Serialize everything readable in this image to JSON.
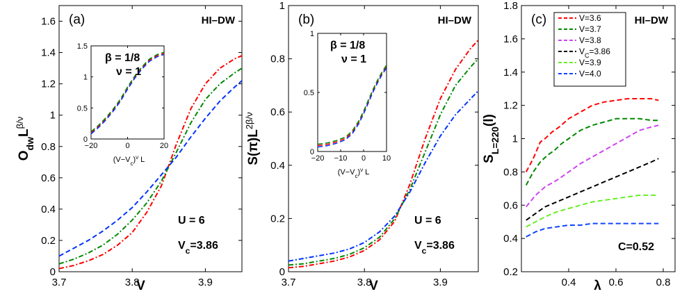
{
  "chart_data": [
    {
      "id": "a",
      "type": "line",
      "panel_label": "(a)",
      "tag": "HI–DW",
      "xlabel": "V",
      "ylabel_main": "O",
      "ylabel_sub": "dw",
      "ylabel_tail": "L",
      "ylabel_sup": "β/ν",
      "xlim": [
        3.7,
        3.95
      ],
      "ylim": [
        0,
        1.7
      ],
      "xticks": [
        3.7,
        3.8,
        3.9
      ],
      "xtick_labels": [
        "3.7",
        "3.8",
        "3.9"
      ],
      "yticks": [
        0,
        0.2,
        0.4,
        0.6,
        0.8,
        1,
        1.2,
        1.4,
        1.6
      ],
      "ytick_labels": [
        "0",
        "0.2",
        "0.4",
        "0.6",
        "0.8",
        "1",
        "1.2",
        "1.4",
        "1.6"
      ],
      "annotations": [
        "U = 6",
        "V",
        "c",
        "=3.86"
      ],
      "series": [
        {
          "name": "red",
          "color": "#ff0000",
          "dash": "dashdot",
          "x": [
            3.7,
            3.72,
            3.74,
            3.76,
            3.78,
            3.8,
            3.82,
            3.84,
            3.86,
            3.88,
            3.9,
            3.92,
            3.94,
            3.95
          ],
          "y": [
            0.02,
            0.04,
            0.07,
            0.11,
            0.17,
            0.25,
            0.38,
            0.55,
            0.81,
            1.04,
            1.2,
            1.3,
            1.36,
            1.38
          ]
        },
        {
          "name": "green",
          "color": "#008800",
          "dash": "dashdot",
          "x": [
            3.7,
            3.72,
            3.74,
            3.76,
            3.78,
            3.8,
            3.82,
            3.84,
            3.86,
            3.88,
            3.9,
            3.92,
            3.94,
            3.95
          ],
          "y": [
            0.05,
            0.08,
            0.12,
            0.17,
            0.24,
            0.33,
            0.44,
            0.58,
            0.76,
            0.95,
            1.1,
            1.2,
            1.27,
            1.3
          ]
        },
        {
          "name": "blue",
          "color": "#0033ff",
          "dash": "dash",
          "x": [
            3.7,
            3.72,
            3.74,
            3.76,
            3.78,
            3.8,
            3.82,
            3.84,
            3.86,
            3.88,
            3.9,
            3.92,
            3.94,
            3.95
          ],
          "y": [
            0.1,
            0.15,
            0.2,
            0.26,
            0.33,
            0.41,
            0.51,
            0.62,
            0.73,
            0.86,
            0.98,
            1.09,
            1.18,
            1.22
          ]
        }
      ],
      "inset": {
        "xlabel": "(V−V",
        "xlabel_sub": "c",
        "xlabel_tail": ")",
        "xlabel_sup": "ν",
        "xlabel_end": " L",
        "xlim": [
          -20,
          20
        ],
        "ylim": [
          0,
          1.5
        ],
        "xticks": [
          -20,
          0,
          20
        ],
        "xtick_labels": [
          "−20",
          "0",
          "20"
        ],
        "yticks": [
          0,
          0.5,
          1,
          1.5
        ],
        "ytick_labels": [
          "0",
          "0.5",
          "1",
          "1.5"
        ],
        "beta_text": "β = 1/8",
        "nu_text": "ν = 1",
        "x": [
          -20,
          -16,
          -12,
          -8,
          -4,
          0,
          4,
          8,
          12,
          16,
          20
        ],
        "y": [
          0.1,
          0.2,
          0.32,
          0.46,
          0.62,
          0.82,
          1.0,
          1.15,
          1.27,
          1.34,
          1.38
        ]
      }
    },
    {
      "id": "b",
      "type": "line",
      "panel_label": "(b)",
      "tag": "HI–DW",
      "xlabel": "V",
      "ylabel_main": "S(π)L",
      "ylabel_sup": "2β/ν",
      "xlim": [
        3.7,
        3.95
      ],
      "ylim": [
        0,
        1
      ],
      "xticks": [
        3.7,
        3.8,
        3.9
      ],
      "xtick_labels": [
        "3.7",
        "3.8",
        "3.9"
      ],
      "yticks": [
        0,
        0.2,
        0.4,
        0.6,
        0.8,
        1
      ],
      "ytick_labels": [
        "0",
        "0.2",
        "0.4",
        "0.6",
        "0.8",
        "1"
      ],
      "annotations": [
        "U = 6",
        "V",
        "c",
        "=3.86"
      ],
      "series": [
        {
          "name": "red",
          "color": "#ff0000",
          "dash": "dashdot",
          "x": [
            3.7,
            3.72,
            3.74,
            3.76,
            3.78,
            3.8,
            3.82,
            3.84,
            3.86,
            3.88,
            3.9,
            3.92,
            3.94,
            3.95
          ],
          "y": [
            0.015,
            0.02,
            0.03,
            0.04,
            0.055,
            0.08,
            0.12,
            0.19,
            0.33,
            0.5,
            0.65,
            0.76,
            0.84,
            0.87
          ]
        },
        {
          "name": "green",
          "color": "#008800",
          "dash": "dashdot",
          "x": [
            3.7,
            3.72,
            3.74,
            3.76,
            3.78,
            3.8,
            3.82,
            3.84,
            3.86,
            3.88,
            3.9,
            3.92,
            3.94,
            3.95
          ],
          "y": [
            0.025,
            0.03,
            0.04,
            0.05,
            0.065,
            0.09,
            0.13,
            0.2,
            0.31,
            0.45,
            0.59,
            0.7,
            0.77,
            0.8
          ]
        },
        {
          "name": "blue",
          "color": "#0033ff",
          "dash": "dashdot",
          "x": [
            3.7,
            3.72,
            3.74,
            3.76,
            3.78,
            3.8,
            3.82,
            3.84,
            3.86,
            3.88,
            3.9,
            3.92,
            3.94,
            3.95
          ],
          "y": [
            0.04,
            0.05,
            0.06,
            0.07,
            0.085,
            0.11,
            0.15,
            0.21,
            0.3,
            0.41,
            0.51,
            0.59,
            0.65,
            0.68
          ]
        }
      ],
      "inset": {
        "xlabel": "(V−V",
        "xlabel_sub": "c",
        "xlabel_tail": ")",
        "xlabel_sup": "ν",
        "xlabel_end": " L",
        "xlim": [
          -20,
          10
        ],
        "ylim": [
          0,
          1
        ],
        "xticks": [
          -20,
          -10,
          0,
          10
        ],
        "xtick_labels": [
          "−20",
          "−10",
          "0",
          "10"
        ],
        "yticks": [
          0,
          0.5,
          1
        ],
        "ytick_labels": [
          "0",
          "0.5",
          "1"
        ],
        "beta_text": "β = 1/8",
        "nu_text": "ν = 1",
        "x": [
          -20,
          -16,
          -12,
          -8,
          -5,
          -2,
          0,
          2,
          4,
          6,
          8,
          10
        ],
        "y": [
          0.05,
          0.06,
          0.08,
          0.11,
          0.16,
          0.25,
          0.33,
          0.42,
          0.51,
          0.59,
          0.66,
          0.72
        ]
      }
    },
    {
      "id": "c",
      "type": "line",
      "panel_label": "(c)",
      "tag": "HI–DW",
      "xlabel": "λ",
      "ylabel_main": "S",
      "ylabel_sub": "L=220",
      "ylabel_tail": "(l)",
      "xlim": [
        0.2,
        0.85
      ],
      "ylim": [
        0.2,
        1.8
      ],
      "xticks": [
        0.4,
        0.6,
        0.8
      ],
      "xtick_labels": [
        "0.4",
        "0.6",
        "0.8"
      ],
      "yticks": [
        0.2,
        0.4,
        0.6,
        0.8,
        1,
        1.2,
        1.4,
        1.6,
        1.8
      ],
      "ytick_labels": [
        "0.2",
        "0.4",
        "0.6",
        "0.8",
        "1",
        "1.2",
        "1.4",
        "1.6",
        "1.8"
      ],
      "annotations": [
        "C=0.52"
      ],
      "series": [
        {
          "name": "V=3.6",
          "label": "V=3.6",
          "color": "#ff0000",
          "dash": "dash",
          "x": [
            0.22,
            0.25,
            0.28,
            0.3,
            0.33,
            0.36,
            0.4,
            0.45,
            0.5,
            0.55,
            0.6,
            0.65,
            0.7,
            0.75,
            0.78
          ],
          "y": [
            0.8,
            0.88,
            0.98,
            1.0,
            1.04,
            1.07,
            1.12,
            1.16,
            1.2,
            1.22,
            1.23,
            1.24,
            1.24,
            1.24,
            1.23
          ]
        },
        {
          "name": "V=3.7",
          "label": "V=3.7",
          "color": "#008800",
          "dash": "dash",
          "x": [
            0.22,
            0.25,
            0.28,
            0.31,
            0.34,
            0.37,
            0.4,
            0.45,
            0.5,
            0.55,
            0.6,
            0.65,
            0.7,
            0.75,
            0.78
          ],
          "y": [
            0.72,
            0.8,
            0.86,
            0.9,
            0.93,
            0.97,
            1.0,
            1.05,
            1.08,
            1.1,
            1.12,
            1.12,
            1.12,
            1.11,
            1.11
          ]
        },
        {
          "name": "V=3.8",
          "label": "V=3.8",
          "color": "#cc44ee",
          "dash": "dash",
          "x": [
            0.22,
            0.26,
            0.3,
            0.35,
            0.4,
            0.45,
            0.5,
            0.55,
            0.6,
            0.65,
            0.7,
            0.75,
            0.78
          ],
          "y": [
            0.59,
            0.66,
            0.71,
            0.75,
            0.8,
            0.85,
            0.89,
            0.93,
            0.97,
            1.01,
            1.05,
            1.07,
            1.08
          ]
        },
        {
          "name": "V=3.86",
          "label": "V",
          "label_sub": "C",
          "label_tail": "=3.86",
          "color": "#000000",
          "dash": "dash",
          "x": [
            0.22,
            0.26,
            0.3,
            0.35,
            0.4,
            0.45,
            0.5,
            0.55,
            0.6,
            0.65,
            0.7,
            0.75,
            0.78
          ],
          "y": [
            0.51,
            0.55,
            0.59,
            0.62,
            0.65,
            0.68,
            0.71,
            0.74,
            0.77,
            0.8,
            0.83,
            0.86,
            0.88
          ]
        },
        {
          "name": "V=3.9",
          "label": "V=3.9",
          "color": "#66ee22",
          "dash": "dash",
          "x": [
            0.22,
            0.26,
            0.3,
            0.35,
            0.4,
            0.45,
            0.5,
            0.55,
            0.6,
            0.65,
            0.7,
            0.75,
            0.78
          ],
          "y": [
            0.47,
            0.5,
            0.53,
            0.56,
            0.58,
            0.6,
            0.62,
            0.63,
            0.64,
            0.65,
            0.66,
            0.66,
            0.66
          ]
        },
        {
          "name": "V=4.0",
          "label": "V=4.0",
          "color": "#1144ff",
          "dash": "dash",
          "x": [
            0.22,
            0.26,
            0.3,
            0.35,
            0.4,
            0.45,
            0.5,
            0.55,
            0.6,
            0.65,
            0.7,
            0.75,
            0.78
          ],
          "y": [
            0.41,
            0.44,
            0.46,
            0.47,
            0.48,
            0.48,
            0.49,
            0.49,
            0.49,
            0.49,
            0.49,
            0.49,
            0.49
          ]
        }
      ]
    }
  ]
}
